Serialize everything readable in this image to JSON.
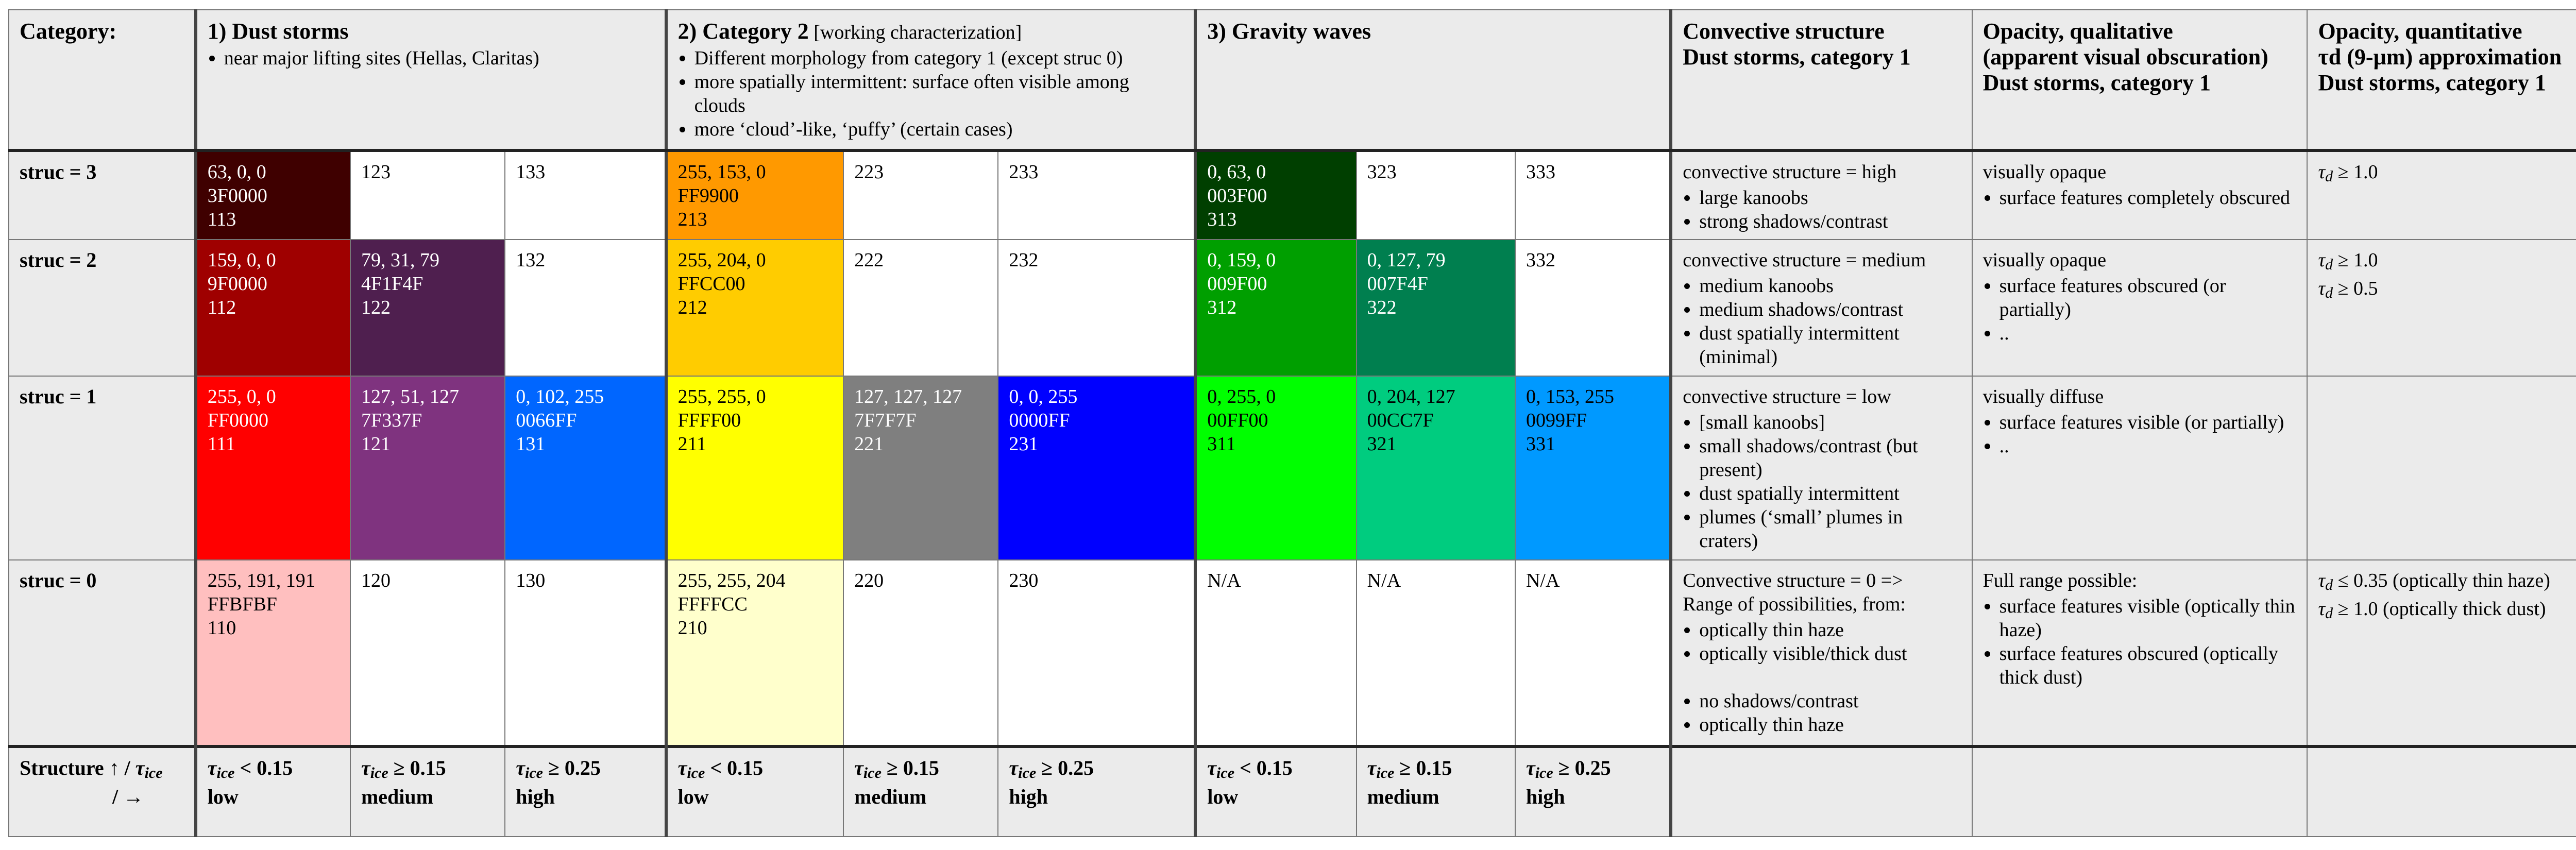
{
  "header": {
    "category_label": "Category:",
    "cat1": {
      "title": "1) Dust storms",
      "bullets": [
        "near major lifting sites (Hellas, Claritas)"
      ]
    },
    "cat2": {
      "title": "2) Category 2",
      "subtitle": "[working characterization]",
      "bullets": [
        "Different morphology from category 1 (except struc 0)",
        "more spatially intermittent: surface often visible among clouds",
        "more ‘cloud’-like, ‘puffy’ (certain cases)"
      ]
    },
    "cat3": {
      "title": "3) Gravity waves"
    },
    "conv": {
      "line1": "Convective structure",
      "line2": "Dust storms, category 1"
    },
    "opq": {
      "line1": "Opacity, qualitative",
      "line2": "(apparent visual obscuration)",
      "line3": "Dust storms, category 1"
    },
    "opn": {
      "line1": "Opacity, quantitative",
      "line2": "τd (9-µm) approximation",
      "line3": "Dust storms, category 1"
    }
  },
  "rows": [
    {
      "label": "struc = 3",
      "cells": [
        {
          "rgb": "63, 0, 0",
          "hex": "3F0000",
          "code": "113",
          "bg": "#3F0000",
          "dark": true
        },
        {
          "code": "123",
          "bg": "#FFFFFF"
        },
        {
          "code": "133",
          "bg": "#FFFFFF"
        },
        {
          "rgb": "255, 153, 0",
          "hex": "FF9900",
          "code": "213",
          "bg": "#FF9900"
        },
        {
          "code": "223",
          "bg": "#FFFFFF"
        },
        {
          "code": "233",
          "bg": "#FFFFFF"
        },
        {
          "rgb": "0, 63, 0",
          "hex": "003F00",
          "code": "313",
          "bg": "#003F00",
          "dark": true
        },
        {
          "code": "323",
          "bg": "#FFFFFF"
        },
        {
          "code": "333",
          "bg": "#FFFFFF"
        }
      ],
      "conv": {
        "intro": "convective structure = high",
        "bullets": [
          "large kanoobs",
          "strong shadows/contrast"
        ]
      },
      "opq": {
        "intro": "visually opaque",
        "bullets": [
          "surface features completely obscured"
        ]
      },
      "opn": {
        "sym": "τ",
        "sub": "d",
        "text": " ≥ 1.0"
      }
    },
    {
      "label": "struc = 2",
      "cells": [
        {
          "rgb": "159, 0, 0",
          "hex": "9F0000",
          "code": "112",
          "bg": "#9F0000",
          "dark": true
        },
        {
          "rgb": "79, 31, 79",
          "hex": "4F1F4F",
          "code": "122",
          "bg": "#4F1F4F",
          "dark": true
        },
        {
          "code": "132",
          "bg": "#FFFFFF"
        },
        {
          "rgb": "255, 204, 0",
          "hex": "FFCC00",
          "code": "212",
          "bg": "#FFCC00"
        },
        {
          "code": "222",
          "bg": "#FFFFFF"
        },
        {
          "code": "232",
          "bg": "#FFFFFF"
        },
        {
          "rgb": "0, 159, 0",
          "hex": "009F00",
          "code": "312",
          "bg": "#009F00",
          "dark": true
        },
        {
          "rgb": "0, 127, 79",
          "hex": "007F4F",
          "code": "322",
          "bg": "#007F4F",
          "dark": true
        },
        {
          "code": "332",
          "bg": "#FFFFFF"
        }
      ],
      "conv": {
        "intro": "convective structure = medium",
        "bullets": [
          "medium kanoobs",
          "medium shadows/contrast",
          "dust spatially intermittent (minimal)"
        ]
      },
      "opq": {
        "intro": "visually opaque",
        "bullets": [
          "surface features  obscured (or partially)",
          ".."
        ]
      },
      "opn": {
        "sym": "τ",
        "sub": "d",
        "text": " ≥ 1.0",
        "sym2": "τ",
        "sub2": "d",
        "text2": " ≥ 0.5"
      }
    },
    {
      "label": "struc = 1",
      "cells": [
        {
          "rgb": "255, 0, 0",
          "hex": "FF0000",
          "code": "111",
          "bg": "#FF0000",
          "dark": true
        },
        {
          "rgb": "127, 51, 127",
          "hex": "7F337F",
          "code": "121",
          "bg": "#7F337F",
          "dark": true
        },
        {
          "rgb": "0, 102, 255",
          "hex": "0066FF",
          "code": "131",
          "bg": "#0066FF",
          "dark": true
        },
        {
          "rgb": "255, 255, 0",
          "hex": "FFFF00",
          "code": "211",
          "bg": "#FFFF00"
        },
        {
          "rgb": "127, 127, 127",
          "hex": "7F7F7F",
          "code": "221",
          "bg": "#7F7F7F",
          "dark": true
        },
        {
          "rgb": "0, 0, 255",
          "hex": "0000FF",
          "code": "231",
          "bg": "#0000FF",
          "dark": true
        },
        {
          "rgb": "0, 255, 0",
          "hex": "00FF00",
          "code": "311",
          "bg": "#00FF00"
        },
        {
          "rgb": "0, 204, 127",
          "hex": "00CC7F",
          "code": "321",
          "bg": "#00CC7F"
        },
        {
          "rgb": "0, 153, 255",
          "hex": "0099FF",
          "code": "331",
          "bg": "#0099FF"
        }
      ],
      "conv": {
        "intro": "convective structure = low",
        "bullets": [
          "[small kanoobs]",
          "small shadows/contrast (but present)",
          "dust spatially intermittent",
          "plumes (‘small’ plumes in craters)"
        ]
      },
      "opq": {
        "intro": "visually diffuse",
        "bullets": [
          "surface features visible (or partially)",
          ".."
        ]
      },
      "opn": {}
    },
    {
      "label": "struc = 0",
      "cells": [
        {
          "rgb": "255, 191, 191",
          "hex": "FFBFBF",
          "code": "110",
          "bg": "#FFBFBF"
        },
        {
          "code": "120",
          "bg": "#FFFFFF"
        },
        {
          "code": "130",
          "bg": "#FFFFFF"
        },
        {
          "rgb": "255, 255, 204",
          "hex": "FFFFCC",
          "code": "210",
          "bg": "#FFFFCC"
        },
        {
          "code": "220",
          "bg": "#FFFFFF"
        },
        {
          "code": "230",
          "bg": "#FFFFFF"
        },
        {
          "code": "N/A",
          "bg": "#FFFFFF"
        },
        {
          "code": "N/A",
          "bg": "#FFFFFF"
        },
        {
          "code": "N/A",
          "bg": "#FFFFFF"
        }
      ],
      "conv": {
        "intro": "Convective structure = 0 =>",
        "intro2": "Range of possibilities, from:",
        "bullets": [
          "optically thin haze",
          "optically visible/thick dust"
        ],
        "bullets2": [
          "no shadows/contrast",
          "optically thin haze"
        ]
      },
      "opq": {
        "intro": "Full range possible:",
        "bullets": [
          "surface features visible (optically thin haze)",
          "surface features obscured (optically thick dust)"
        ]
      },
      "opn": {
        "sym": "τ",
        "sub": "d",
        "text": " ≤ 0.35 (optically thin haze)",
        "sym2": "τ",
        "sub2": "d",
        "text2": " ≥ 1.0 (optically thick dust)"
      }
    }
  ],
  "footer": {
    "label_line1": "Structure ↑ / ",
    "label_tau": "τ",
    "label_sub": "ice",
    "label_line2": "/   →",
    "cells": [
      {
        "sub": "ice",
        "cmp": " < 0.15",
        "word": "low"
      },
      {
        "sub": "ice",
        "cmp": " ≥ 0.15",
        "word": "medium"
      },
      {
        "sub": "ice",
        "cmp": " ≥ 0.25",
        "word": "high"
      },
      {
        "sub": "ice",
        "cmp": " < 0.15",
        "word": "low"
      },
      {
        "sub": "ice",
        "cmp": " ≥ 0.15",
        "word": "medium"
      },
      {
        "sub": "ice",
        "cmp": " ≥ 0.25",
        "word": "high"
      },
      {
        "sub": "ice",
        "cmp": " < 0.15",
        "word": "low"
      },
      {
        "sub": "ice",
        "cmp": " ≥ 0.15",
        "word": "medium"
      },
      {
        "sub": "ice",
        "cmp": " ≥ 0.25",
        "word": "high"
      }
    ],
    "tau_symbol": "τ"
  }
}
